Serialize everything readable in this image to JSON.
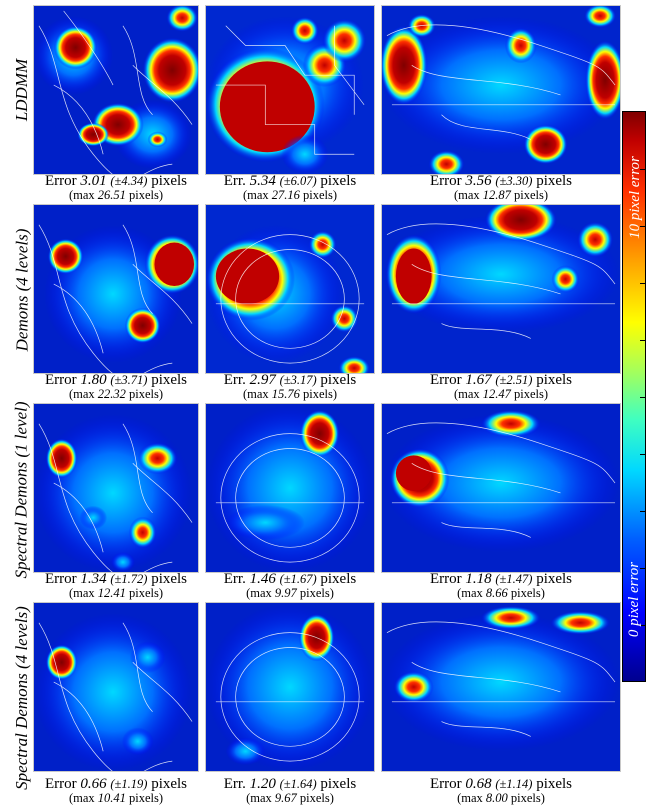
{
  "rows": [
    {
      "label": "LDDMM",
      "captions": [
        {
          "prefix": "Error",
          "mean": "3.01",
          "sd": "(±4.34)",
          "unit": "pixels",
          "max_prefix": "(max",
          "max": "26.51",
          "max_unit": "pixels)"
        },
        {
          "prefix": "Err.",
          "mean": "5.34",
          "sd": "(±6.07)",
          "unit": "pixels",
          "max_prefix": "(max",
          "max": "27.16",
          "max_unit": "pixels)"
        },
        {
          "prefix": "Error",
          "mean": "3.56",
          "sd": "(±3.30)",
          "unit": "pixels",
          "max_prefix": "(max",
          "max": "12.87",
          "max_unit": "pixels)"
        }
      ]
    },
    {
      "label": "Demons (4 levels)",
      "captions": [
        {
          "prefix": "Error",
          "mean": "1.80",
          "sd": "(±3.71)",
          "unit": "pixels",
          "max_prefix": "(max",
          "max": "22.32",
          "max_unit": "pixels)"
        },
        {
          "prefix": "Err.",
          "mean": "2.97",
          "sd": "(±3.17)",
          "unit": "pixels",
          "max_prefix": "(max",
          "max": "15.76",
          "max_unit": "pixels)"
        },
        {
          "prefix": "Error",
          "mean": "1.67",
          "sd": "(±2.51)",
          "unit": "pixels",
          "max_prefix": "(max",
          "max": "12.47",
          "max_unit": "pixels)"
        }
      ]
    },
    {
      "label": "Spectral Demons (1 level)",
      "captions": [
        {
          "prefix": "Error",
          "mean": "1.34",
          "sd": "(±1.72)",
          "unit": "pixels",
          "max_prefix": "(max",
          "max": "12.41",
          "max_unit": "pixels)"
        },
        {
          "prefix": "Err.",
          "mean": "1.46",
          "sd": "(±1.67)",
          "unit": "pixels",
          "max_prefix": "(max",
          "max": "9.97",
          "max_unit": "pixels)"
        },
        {
          "prefix": "Error",
          "mean": "1.18",
          "sd": "(±1.47)",
          "unit": "pixels",
          "max_prefix": "(max",
          "max": "8.66",
          "max_unit": "pixels)"
        }
      ]
    },
    {
      "label": "Spectral Demons (4 levels)",
      "captions": [
        {
          "prefix": "Error",
          "mean": "0.66",
          "sd": "(±1.19)",
          "unit": "pixels",
          "max_prefix": "(max",
          "max": "10.41",
          "max_unit": "pixels)"
        },
        {
          "prefix": "Err.",
          "mean": "1.20",
          "sd": "(±1.64)",
          "unit": "pixels",
          "max_prefix": "(max",
          "max": "9.67",
          "max_unit": "pixels)"
        },
        {
          "prefix": "Error",
          "mean": "0.68",
          "sd": "(±1.14)",
          "unit": "pixels",
          "max_prefix": "(max",
          "max": "8.00",
          "max_unit": "pixels)"
        }
      ]
    }
  ],
  "colorbar": {
    "top_label": "10 pixel error",
    "bottom_label": "0 pixel error",
    "colors": [
      "#00008f",
      "#0000ff",
      "#00d8ff",
      "#ffff00",
      "#ff3000",
      "#800000"
    ]
  }
}
